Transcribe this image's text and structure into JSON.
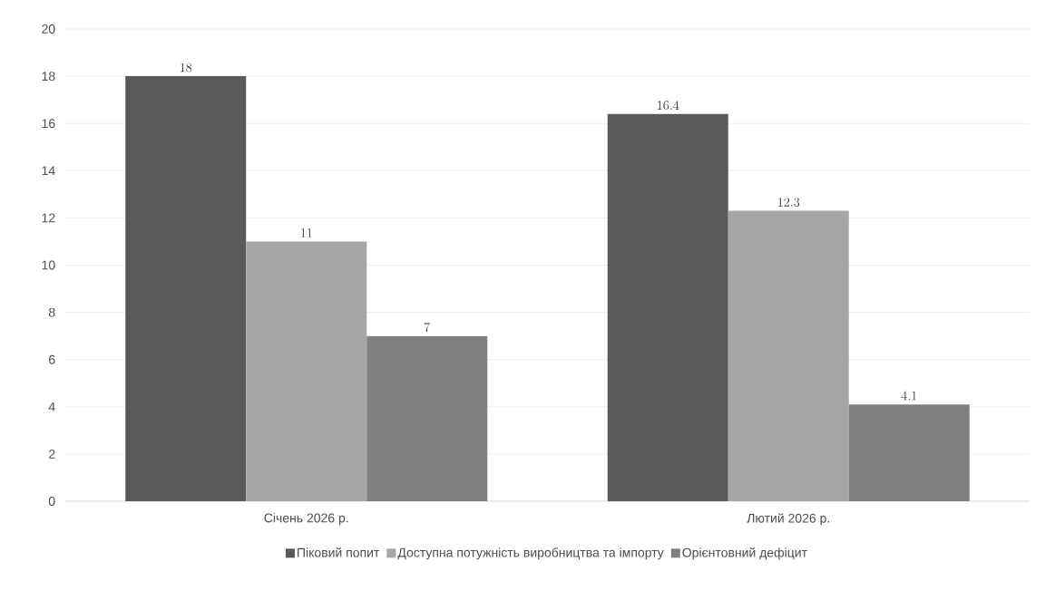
{
  "chart_data": {
    "type": "bar",
    "categories": [
      "Січень 2026 р.",
      "Лютий 2026 р."
    ],
    "series": [
      {
        "name": "Піковий попит",
        "color": "#595959",
        "values": [
          18,
          16.4
        ]
      },
      {
        "name": "Доступна потужність виробництва та імпорту",
        "color": "#a6a6a6",
        "values": [
          11,
          12.3
        ]
      },
      {
        "name": "Орієнтовний дефіцит",
        "color": "#808080",
        "values": [
          7,
          4.1
        ]
      }
    ],
    "ylim": [
      0,
      20
    ],
    "yticks": [
      0,
      2,
      4,
      6,
      8,
      10,
      12,
      14,
      16,
      18,
      20
    ],
    "grid": "y",
    "legend": "bottom",
    "data_labels": true
  }
}
